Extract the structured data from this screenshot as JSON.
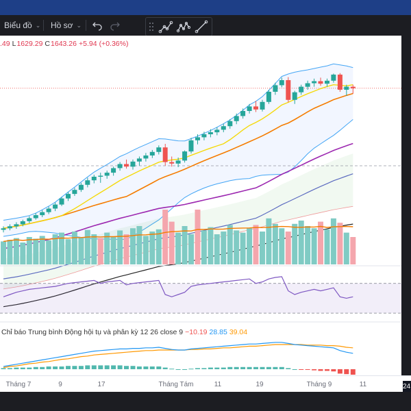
{
  "toolbar": {
    "chart_label": "Biểu đồ",
    "profile_label": "Hồ sơ"
  },
  "ohlc": {
    "open_partial": ".49",
    "low_label": "L",
    "low": "1629.29",
    "close_label": "C",
    "close": "1643.26",
    "change": "+5.94",
    "change_pct": "(+0.36%)"
  },
  "macd": {
    "title": "Chỉ báo Trung bình Động hội tụ và phân kỳ",
    "params": "12 26 close 9",
    "histogram": "−10.19",
    "macd_value": "28.85",
    "signal_value": "39.04"
  },
  "time_axis": {
    "labels": [
      "Tháng 7",
      "9",
      "17",
      "Tháng Tám",
      "11",
      "19",
      "Tháng 9",
      "11"
    ]
  },
  "corner_badge": "24",
  "colors": {
    "up": "#26a69a",
    "down": "#ef5350",
    "ma_fast": "#f5d90a",
    "ma_mid": "#f57c00",
    "ma_slow": "#9c27b0",
    "ma_long": "#5c6bc0",
    "ma_longest": "#222222",
    "bollinger": "#42a5f5",
    "rsi": "#7e57c2",
    "macd_line": "#2196f3",
    "signal_line": "#ff9800"
  },
  "chart_data": [
    {
      "type": "candlestick",
      "title": "",
      "note": "price panel, approximate values read from chart",
      "ylim": [
        1300,
        1720
      ],
      "candles": [
        {
          "o": 1363,
          "h": 1370,
          "l": 1358,
          "c": 1366
        },
        {
          "o": 1366,
          "h": 1374,
          "l": 1362,
          "c": 1370
        },
        {
          "o": 1370,
          "h": 1378,
          "l": 1365,
          "c": 1374
        },
        {
          "o": 1374,
          "h": 1383,
          "l": 1370,
          "c": 1380
        },
        {
          "o": 1380,
          "h": 1390,
          "l": 1376,
          "c": 1386
        },
        {
          "o": 1386,
          "h": 1396,
          "l": 1383,
          "c": 1392
        },
        {
          "o": 1392,
          "h": 1402,
          "l": 1388,
          "c": 1398
        },
        {
          "o": 1398,
          "h": 1409,
          "l": 1394,
          "c": 1405
        },
        {
          "o": 1405,
          "h": 1417,
          "l": 1400,
          "c": 1413
        },
        {
          "o": 1413,
          "h": 1428,
          "l": 1410,
          "c": 1425
        },
        {
          "o": 1425,
          "h": 1438,
          "l": 1420,
          "c": 1434
        },
        {
          "o": 1434,
          "h": 1446,
          "l": 1430,
          "c": 1442
        },
        {
          "o": 1442,
          "h": 1456,
          "l": 1438,
          "c": 1452
        },
        {
          "o": 1452,
          "h": 1466,
          "l": 1447,
          "c": 1461
        },
        {
          "o": 1461,
          "h": 1472,
          "l": 1455,
          "c": 1468
        },
        {
          "o": 1468,
          "h": 1476,
          "l": 1456,
          "c": 1470
        },
        {
          "o": 1470,
          "h": 1480,
          "l": 1464,
          "c": 1476
        },
        {
          "o": 1476,
          "h": 1488,
          "l": 1470,
          "c": 1485
        },
        {
          "o": 1485,
          "h": 1497,
          "l": 1480,
          "c": 1493
        },
        {
          "o": 1493,
          "h": 1502,
          "l": 1484,
          "c": 1488
        },
        {
          "o": 1488,
          "h": 1502,
          "l": 1482,
          "c": 1498
        },
        {
          "o": 1498,
          "h": 1508,
          "l": 1490,
          "c": 1504
        },
        {
          "o": 1504,
          "h": 1515,
          "l": 1498,
          "c": 1510
        },
        {
          "o": 1510,
          "h": 1521,
          "l": 1505,
          "c": 1517
        },
        {
          "o": 1517,
          "h": 1530,
          "l": 1512,
          "c": 1526
        },
        {
          "o": 1526,
          "h": 1533,
          "l": 1490,
          "c": 1497
        },
        {
          "o": 1497,
          "h": 1508,
          "l": 1488,
          "c": 1494
        },
        {
          "o": 1494,
          "h": 1506,
          "l": 1487,
          "c": 1500
        },
        {
          "o": 1500,
          "h": 1520,
          "l": 1496,
          "c": 1518
        },
        {
          "o": 1518,
          "h": 1545,
          "l": 1514,
          "c": 1540
        },
        {
          "o": 1540,
          "h": 1552,
          "l": 1532,
          "c": 1546
        },
        {
          "o": 1546,
          "h": 1557,
          "l": 1540,
          "c": 1552
        },
        {
          "o": 1552,
          "h": 1562,
          "l": 1546,
          "c": 1556
        },
        {
          "o": 1556,
          "h": 1566,
          "l": 1550,
          "c": 1561
        },
        {
          "o": 1561,
          "h": 1573,
          "l": 1556,
          "c": 1568
        },
        {
          "o": 1568,
          "h": 1582,
          "l": 1563,
          "c": 1578
        },
        {
          "o": 1578,
          "h": 1593,
          "l": 1572,
          "c": 1588
        },
        {
          "o": 1588,
          "h": 1603,
          "l": 1583,
          "c": 1598
        },
        {
          "o": 1598,
          "h": 1612,
          "l": 1593,
          "c": 1607
        },
        {
          "o": 1607,
          "h": 1618,
          "l": 1596,
          "c": 1601
        },
        {
          "o": 1601,
          "h": 1620,
          "l": 1597,
          "c": 1616
        },
        {
          "o": 1616,
          "h": 1640,
          "l": 1612,
          "c": 1636
        },
        {
          "o": 1636,
          "h": 1654,
          "l": 1630,
          "c": 1649
        },
        {
          "o": 1649,
          "h": 1664,
          "l": 1645,
          "c": 1659
        },
        {
          "o": 1659,
          "h": 1665,
          "l": 1615,
          "c": 1620
        },
        {
          "o": 1620,
          "h": 1638,
          "l": 1612,
          "c": 1635
        },
        {
          "o": 1635,
          "h": 1650,
          "l": 1630,
          "c": 1646
        },
        {
          "o": 1646,
          "h": 1658,
          "l": 1640,
          "c": 1653
        },
        {
          "o": 1653,
          "h": 1662,
          "l": 1646,
          "c": 1657
        },
        {
          "o": 1657,
          "h": 1664,
          "l": 1648,
          "c": 1652
        },
        {
          "o": 1652,
          "h": 1662,
          "l": 1646,
          "c": 1658
        },
        {
          "o": 1658,
          "h": 1672,
          "l": 1654,
          "c": 1670
        },
        {
          "o": 1670,
          "h": 1673,
          "l": 1636,
          "c": 1640
        },
        {
          "o": 1640,
          "h": 1650,
          "l": 1628,
          "c": 1646
        },
        {
          "o": 1646,
          "h": 1650,
          "l": 1632,
          "c": 1643
        }
      ]
    },
    {
      "type": "bar",
      "title": "",
      "note": "volume panel, relative values",
      "values": [
        42,
        45,
        48,
        40,
        50,
        47,
        52,
        44,
        55,
        58,
        46,
        60,
        50,
        63,
        55,
        48,
        58,
        50,
        62,
        55,
        66,
        70,
        52,
        60,
        64,
        100,
        78,
        58,
        70,
        55,
        100,
        62,
        68,
        55,
        60,
        72,
        62,
        58,
        66,
        72,
        60,
        84,
        74,
        66,
        60,
        74,
        80,
        70,
        66,
        78,
        64,
        84,
        76,
        58,
        50
      ],
      "up": [
        true,
        true,
        true,
        true,
        true,
        true,
        true,
        true,
        true,
        true,
        true,
        true,
        true,
        true,
        true,
        false,
        true,
        true,
        true,
        false,
        true,
        true,
        true,
        true,
        true,
        false,
        false,
        true,
        true,
        true,
        false,
        true,
        true,
        true,
        true,
        true,
        true,
        true,
        true,
        false,
        true,
        true,
        true,
        true,
        false,
        true,
        true,
        true,
        true,
        false,
        true,
        true,
        false,
        true,
        false
      ]
    },
    {
      "type": "line",
      "title": "",
      "note": "RSI panel",
      "ylim": [
        20,
        90
      ],
      "levels": [
        70,
        30
      ],
      "values": [
        52,
        55,
        58,
        60,
        62,
        63,
        64,
        65,
        66,
        68,
        70,
        71,
        72,
        73,
        74,
        70,
        72,
        73,
        74,
        68,
        70,
        71,
        72,
        73,
        74,
        55,
        52,
        55,
        58,
        66,
        68,
        69,
        70,
        71,
        72,
        73,
        74,
        75,
        76,
        70,
        72,
        76,
        78,
        79,
        60,
        55,
        58,
        60,
        62,
        60,
        62,
        64,
        52,
        50,
        52
      ]
    },
    {
      "type": "line",
      "title": "Chỉ báo Trung bình Động hội tụ và phân kỳ",
      "series": [
        {
          "name": "28.85",
          "values": [
            5,
            7,
            9,
            11,
            13,
            15,
            17,
            19,
            21,
            23,
            25,
            27,
            29,
            31,
            33,
            34,
            35,
            36,
            37,
            37,
            38,
            38,
            39,
            39,
            40,
            38,
            36,
            35,
            35,
            37,
            38,
            39,
            40,
            41,
            42,
            43,
            44,
            45,
            46,
            46,
            47,
            48,
            49,
            49,
            47,
            45,
            44,
            43,
            42,
            41,
            40,
            39,
            34,
            31,
            29
          ]
        },
        {
          "name": "39.04",
          "values": [
            3,
            5,
            6,
            8,
            10,
            11,
            13,
            14,
            16,
            18,
            19,
            21,
            23,
            24,
            26,
            27,
            28,
            29,
            30,
            31,
            32,
            33,
            34,
            34,
            35,
            35,
            35,
            35,
            35,
            36,
            36,
            37,
            37,
            38,
            39,
            39,
            40,
            41,
            42,
            42,
            43,
            44,
            45,
            45,
            45,
            45,
            45,
            44,
            44,
            44,
            43,
            43,
            42,
            40,
            39
          ]
        },
        {
          "name": "−10.19",
          "values": [
            2,
            2,
            3,
            3,
            3,
            4,
            4,
            5,
            5,
            5,
            6,
            6,
            6,
            7,
            7,
            7,
            7,
            7,
            7,
            6,
            6,
            5,
            5,
            5,
            5,
            3,
            1,
            0,
            0,
            1,
            2,
            2,
            3,
            3,
            3,
            4,
            4,
            4,
            4,
            4,
            4,
            4,
            4,
            4,
            2,
            0,
            -1,
            -1,
            -2,
            -3,
            -3,
            -4,
            -8,
            -9,
            -10
          ]
        }
      ]
    }
  ]
}
